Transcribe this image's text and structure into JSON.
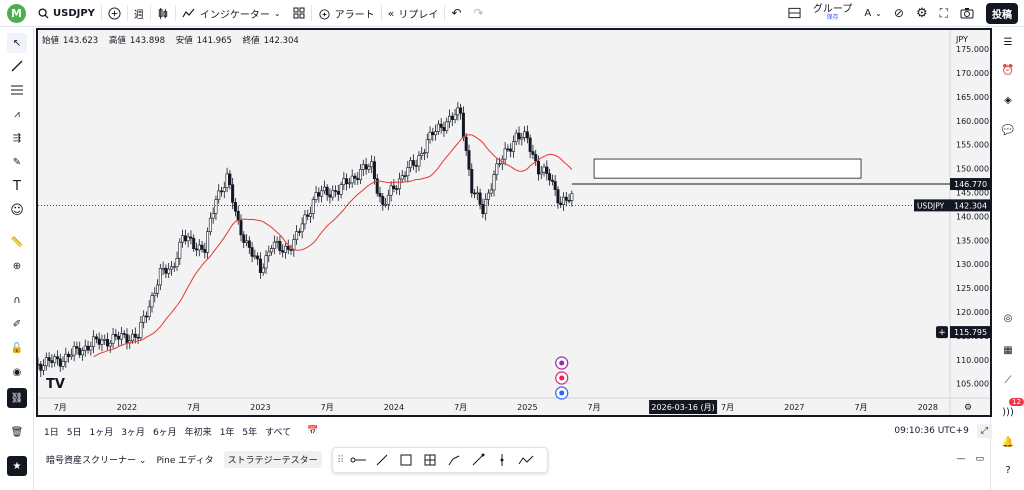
{
  "topbar": {
    "avatar_letter": "M",
    "symbol": "USDJPY",
    "interval": "週",
    "indicators_label": "インジケーター",
    "alert_label": "アラート",
    "replay_label": "リプレイ",
    "group_label": "グループ",
    "save_label": "保存",
    "post_label": "投稿"
  },
  "ohlc": {
    "open_label": "始値",
    "open": "143.623",
    "high_label": "高値",
    "high": "143.898",
    "low_label": "安値",
    "low": "141.965",
    "close_label": "終値",
    "close": "142.304"
  },
  "price_axis": {
    "currency": "JPY",
    "ticks": [
      "175.000",
      "170.000",
      "165.000",
      "160.000",
      "155.000",
      "150.000",
      "145.000",
      "140.000",
      "135.000",
      "130.000",
      "125.000",
      "120.000",
      "115.000",
      "110.000",
      "105.000"
    ],
    "line_label": "146.770",
    "symbol_tag": "USDJPY",
    "current_price": "142.304",
    "alert_price": "115.795"
  },
  "time_axis": {
    "labels": [
      "7月",
      "2022",
      "7月",
      "2023",
      "7月",
      "2024",
      "7月",
      "2025",
      "7月",
      "7月",
      "2027",
      "7月",
      "2028"
    ],
    "cursor_date": "2026-03-16 (月)"
  },
  "bottombar": {
    "ranges": [
      "1日",
      "5日",
      "1ヶ月",
      "3ヶ月",
      "6ヶ月",
      "年初来",
      "1年",
      "5年",
      "すべて"
    ],
    "clock": "09:10:36 UTC+9"
  },
  "panelbar": {
    "tabs": [
      "暗号資産スクリーナー",
      "Pine エディタ",
      "ストラテジーテスター"
    ]
  },
  "right_badge": "12",
  "colors": {
    "ma_line": "#e53935",
    "candle": "#131722",
    "accent": "#2962ff"
  },
  "chart_data": {
    "type": "candlestick",
    "series_ma_color": "#e53935",
    "ylim": [
      102,
      179
    ],
    "x_range": [
      "2021-05",
      "2028-03"
    ],
    "hline": 146.77,
    "rectangle": {
      "x0": "2025-07",
      "x1": "2027-07",
      "y0": 148,
      "y1": 152
    },
    "close_path": [
      [
        "2021-05",
        109
      ],
      [
        "2021-07",
        110
      ],
      [
        "2021-10",
        113.5
      ],
      [
        "2021-12",
        114.5
      ],
      [
        "2022-02",
        115
      ],
      [
        "2022-03",
        121.5
      ],
      [
        "2022-04",
        128
      ],
      [
        "2022-05",
        129
      ],
      [
        "2022-06",
        135.5
      ],
      [
        "2022-08",
        133
      ],
      [
        "2022-09",
        144
      ],
      [
        "2022-10",
        148
      ],
      [
        "2022-11",
        138.5
      ],
      [
        "2022-12",
        133
      ],
      [
        "2023-01",
        129
      ],
      [
        "2023-02",
        134
      ],
      [
        "2023-03",
        133
      ],
      [
        "2023-04",
        134.5
      ],
      [
        "2023-05",
        139.5
      ],
      [
        "2023-06",
        144.5
      ],
      [
        "2023-08",
        145.5
      ],
      [
        "2023-10",
        149.5
      ],
      [
        "2023-11",
        150.5
      ],
      [
        "2023-12",
        142
      ],
      [
        "2024-01",
        146
      ],
      [
        "2024-02",
        149.5
      ],
      [
        "2024-03",
        151
      ],
      [
        "2024-04",
        156
      ],
      [
        "2024-06",
        160.5
      ],
      [
        "2024-07",
        161.5
      ],
      [
        "2024-08",
        146
      ],
      [
        "2024-09",
        141
      ],
      [
        "2024-10",
        149
      ],
      [
        "2024-11",
        153
      ],
      [
        "2024-12",
        157
      ],
      [
        "2025-01",
        156
      ],
      [
        "2025-02",
        150
      ],
      [
        "2025-03",
        148
      ],
      [
        "2025-04",
        143
      ],
      [
        "2025-05",
        143.6
      ]
    ]
  }
}
